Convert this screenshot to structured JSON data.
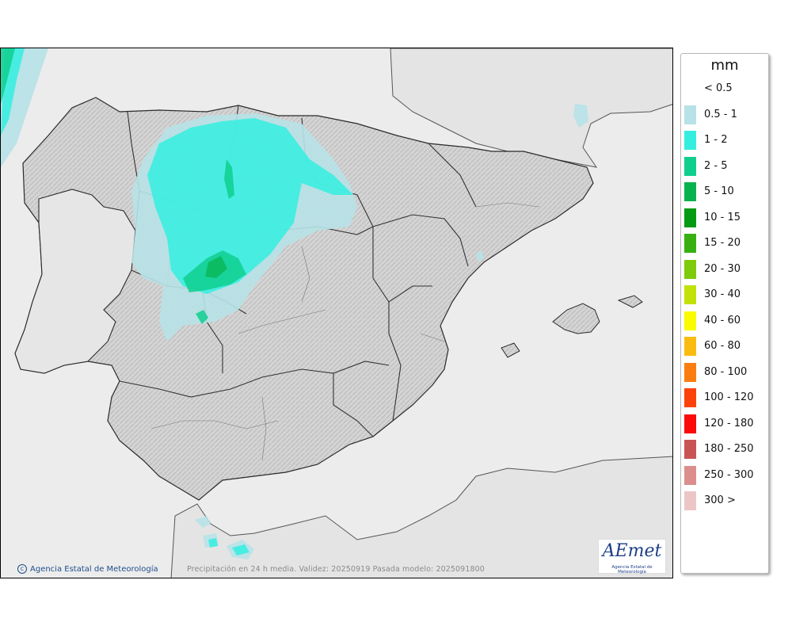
{
  "legend": {
    "title": "mm",
    "items": [
      {
        "label": "< 0.5",
        "color": null
      },
      {
        "label": "0.5 - 1",
        "color": "#b7e2e7"
      },
      {
        "label": "1 - 2",
        "color": "#34efe0"
      },
      {
        "label": "2 - 5",
        "color": "#0fcf8e"
      },
      {
        "label": "5 - 10",
        "color": "#08b24c"
      },
      {
        "label": "10 - 15",
        "color": "#039a14"
      },
      {
        "label": "15 - 20",
        "color": "#38b012"
      },
      {
        "label": "20 - 30",
        "color": "#7dcb0c"
      },
      {
        "label": "30 - 40",
        "color": "#c2e10a"
      },
      {
        "label": "40 - 60",
        "color": "#fbfb00"
      },
      {
        "label": "60 - 80",
        "color": "#fbbc12"
      },
      {
        "label": "80 - 100",
        "color": "#fb7d10"
      },
      {
        "label": "100 - 120",
        "color": "#fb420b"
      },
      {
        "label": "120 - 180",
        "color": "#fb0a0a"
      },
      {
        "label": "180 - 250",
        "color": "#c85454"
      },
      {
        "label": "250 - 300",
        "color": "#dc8e8e"
      },
      {
        "label": "300 >",
        "color": "#ecc6c6"
      }
    ]
  },
  "credit": "Agencia Estatal de Meteorología",
  "caption": "Precipitación en 24 h media. Validez: 20250919 Pasada modelo: 2025091800",
  "logo": {
    "text": "AEmet",
    "subtitle": "Agencia Estatal de Meteorología"
  },
  "colors": {
    "sea": "#ececec",
    "land": "#d6d6d6",
    "border": "#2a2a2a"
  }
}
